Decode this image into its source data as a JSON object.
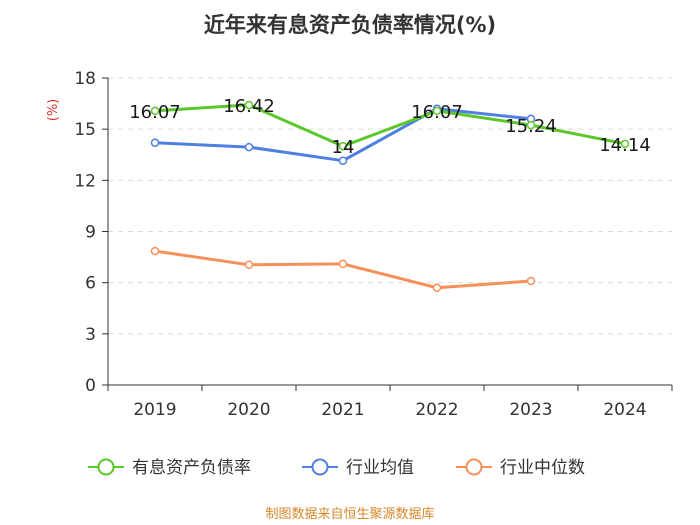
{
  "chart_data": {
    "type": "line",
    "title": "近年来有息资产负债率情况(%)",
    "ylabel": "(%)",
    "xlabel": "",
    "categories": [
      "2019",
      "2020",
      "2021",
      "2022",
      "2023",
      "2024"
    ],
    "yticks": [
      "0",
      "3",
      "6",
      "9",
      "12",
      "15",
      "18"
    ],
    "ylim": [
      0,
      18
    ],
    "grid": true,
    "legend_position": "bottom",
    "series": [
      {
        "name": "有息资产负债率",
        "color": "#5cc72a",
        "values": [
          16.07,
          16.42,
          14,
          16.07,
          15.24,
          14.14
        ],
        "labels": [
          "16.07",
          "16.42",
          "14",
          "16.07",
          "15.24",
          "14.14"
        ]
      },
      {
        "name": "行业均值",
        "color": "#4f7fe0",
        "values": [
          14.2,
          13.95,
          13.15,
          16.2,
          15.6,
          null
        ]
      },
      {
        "name": "行业中位数",
        "color": "#f78f5a",
        "values": [
          7.85,
          7.05,
          7.1,
          5.7,
          6.1,
          null
        ]
      }
    ],
    "source": "制图数据来自恒生聚源数据库"
  }
}
